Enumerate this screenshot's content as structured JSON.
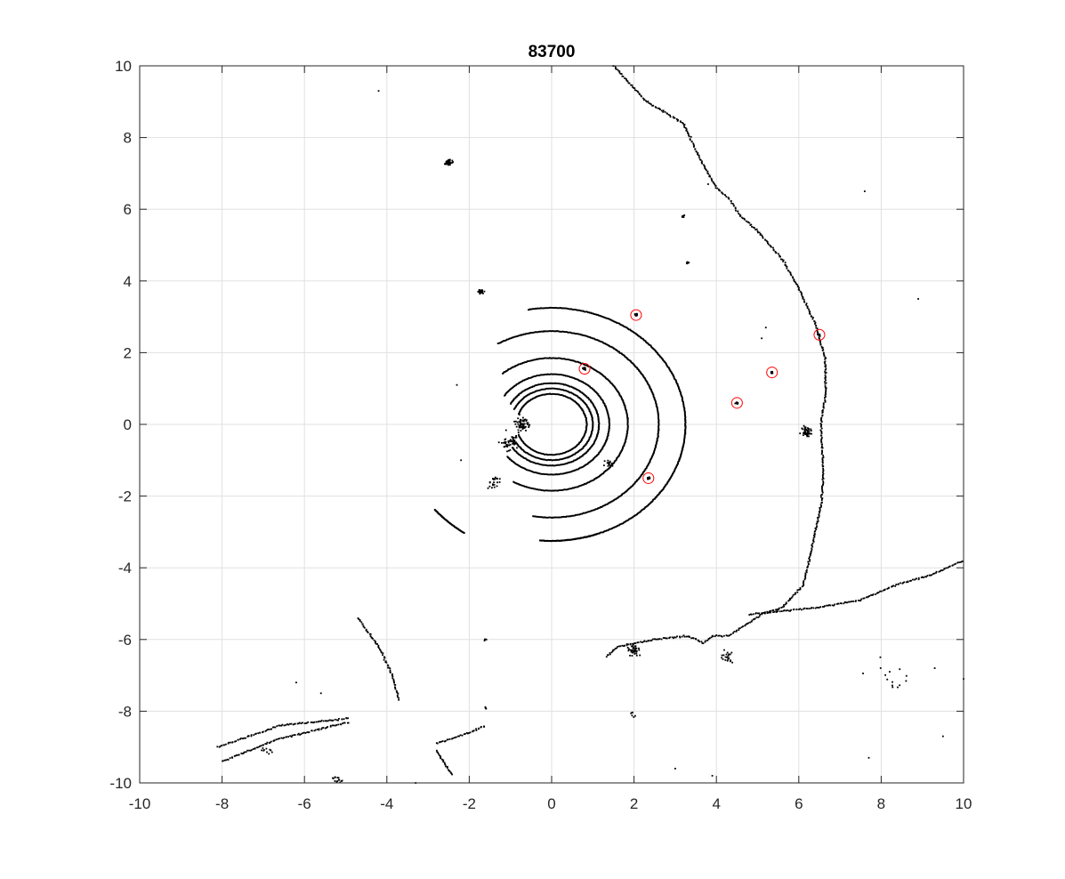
{
  "chart_data": {
    "type": "scatter",
    "title": "83700",
    "xlabel": "",
    "ylabel": "",
    "xlim": [
      -10,
      10
    ],
    "ylim": [
      -10,
      10
    ],
    "xticks": [
      -10,
      -8,
      -6,
      -4,
      -2,
      0,
      2,
      4,
      6,
      8,
      10
    ],
    "yticks": [
      -10,
      -8,
      -6,
      -4,
      -2,
      0,
      2,
      4,
      6,
      8,
      10
    ],
    "xtick_labels": [
      "-10",
      "-8",
      "-6",
      "-4",
      "-2",
      "0",
      "2",
      "4",
      "6",
      "8",
      "10"
    ],
    "ytick_labels": [
      "-10",
      "-8",
      "-6",
      "-4",
      "-2",
      "0",
      "2",
      "4",
      "6",
      "8",
      "10"
    ],
    "grid": true,
    "colors": {
      "points": "#000000",
      "markers": "#ff0000",
      "grid": "#e0e0e0",
      "axis": "#262626"
    },
    "marked_points": [
      {
        "x": 2.05,
        "y": 3.05
      },
      {
        "x": 0.8,
        "y": 1.55
      },
      {
        "x": 6.5,
        "y": 2.5
      },
      {
        "x": 5.35,
        "y": 1.45
      },
      {
        "x": 4.5,
        "y": 0.6
      },
      {
        "x": 2.35,
        "y": -1.5
      }
    ],
    "arcs": [
      {
        "r": 0.85,
        "from": -160,
        "to": 160
      },
      {
        "r": 1.0,
        "from": -150,
        "to": 155
      },
      {
        "r": 1.15,
        "from": -145,
        "to": 150
      },
      {
        "r": 1.4,
        "from": -140,
        "to": 145
      },
      {
        "r": 1.85,
        "from": -120,
        "to": 130
      },
      {
        "r": 2.6,
        "from": -100,
        "to": 120
      },
      {
        "r": 3.25,
        "from": -95,
        "to": 100
      },
      {
        "r": 3.25,
        "from": -95,
        "to": -70
      },
      {
        "r": 3.7,
        "from": -140,
        "to": -125
      }
    ],
    "polylines": [
      {
        "pts": [
          [
            1.5,
            10
          ],
          [
            2.3,
            9
          ],
          [
            3.2,
            8.4
          ],
          [
            3.6,
            7.4
          ],
          [
            4.0,
            6.6
          ],
          [
            4.3,
            6.3
          ],
          [
            4.6,
            5.8
          ],
          [
            5.0,
            5.4
          ],
          [
            5.6,
            4.6
          ],
          [
            6.0,
            3.8
          ],
          [
            6.4,
            2.8
          ],
          [
            6.65,
            1.8
          ],
          [
            6.65,
            0.8
          ],
          [
            6.55,
            0.2
          ],
          [
            6.55,
            -0.5
          ],
          [
            6.6,
            -1.3
          ],
          [
            6.55,
            -2.2
          ],
          [
            6.4,
            -3.0
          ],
          [
            6.25,
            -3.8
          ],
          [
            6.1,
            -4.5
          ],
          [
            5.6,
            -5.1
          ],
          [
            5.1,
            -5.3
          ],
          [
            4.7,
            -5.6
          ],
          [
            4.3,
            -5.9
          ],
          [
            3.9,
            -5.9
          ],
          [
            3.7,
            -6.1
          ],
          [
            3.3,
            -5.9
          ],
          [
            2.5,
            -6.0
          ],
          [
            1.6,
            -6.2
          ],
          [
            1.3,
            -6.5
          ]
        ]
      },
      {
        "pts": [
          [
            4.8,
            -5.3
          ],
          [
            6.5,
            -5.1
          ],
          [
            7.5,
            -4.9
          ],
          [
            8.3,
            -4.5
          ],
          [
            9.2,
            -4.2
          ],
          [
            10,
            -3.8
          ]
        ]
      },
      {
        "pts": [
          [
            -4.7,
            -5.4
          ],
          [
            -4.2,
            -6.2
          ],
          [
            -3.9,
            -6.9
          ],
          [
            -3.7,
            -7.7
          ]
        ]
      },
      {
        "pts": [
          [
            -8.1,
            -9.0
          ],
          [
            -6.6,
            -8.4
          ],
          [
            -4.9,
            -8.2
          ]
        ]
      },
      {
        "pts": [
          [
            -8.0,
            -9.4
          ],
          [
            -6.7,
            -8.8
          ],
          [
            -4.9,
            -8.3
          ]
        ]
      },
      {
        "pts": [
          [
            -2.8,
            -9.1
          ],
          [
            -2.4,
            -9.8
          ]
        ]
      },
      {
        "pts": [
          [
            -2.8,
            -8.9
          ],
          [
            -2.0,
            -8.6
          ],
          [
            -1.6,
            -8.4
          ]
        ]
      }
    ],
    "clusters": [
      {
        "x": -2.5,
        "y": 7.3,
        "n": 40,
        "s": 0.12
      },
      {
        "x": -1.7,
        "y": 3.7,
        "n": 30,
        "s": 0.1
      },
      {
        "x": 2.05,
        "y": 3.05,
        "n": 14,
        "s": 0.05
      },
      {
        "x": 0.8,
        "y": 1.55,
        "n": 16,
        "s": 0.06
      },
      {
        "x": 6.5,
        "y": 2.5,
        "n": 6,
        "s": 0.05
      },
      {
        "x": 5.35,
        "y": 1.45,
        "n": 8,
        "s": 0.06
      },
      {
        "x": 4.5,
        "y": 0.6,
        "n": 12,
        "s": 0.05
      },
      {
        "x": 2.35,
        "y": -1.5,
        "n": 16,
        "s": 0.05
      },
      {
        "x": 3.3,
        "y": 4.5,
        "n": 10,
        "s": 0.05
      },
      {
        "x": 3.2,
        "y": 5.8,
        "n": 8,
        "s": 0.05
      },
      {
        "x": -0.7,
        "y": 0.0,
        "n": 60,
        "s": 0.28
      },
      {
        "x": -1.0,
        "y": -0.5,
        "n": 50,
        "s": 0.35
      },
      {
        "x": -1.4,
        "y": -1.6,
        "n": 22,
        "s": 0.25
      },
      {
        "x": 1.4,
        "y": -1.1,
        "n": 18,
        "s": 0.15
      },
      {
        "x": 6.2,
        "y": -0.2,
        "n": 50,
        "s": 0.2
      },
      {
        "x": 4.3,
        "y": -6.5,
        "n": 24,
        "s": 0.3
      },
      {
        "x": 2.0,
        "y": -6.3,
        "n": 40,
        "s": 0.2
      },
      {
        "x": -5.2,
        "y": -9.9,
        "n": 14,
        "s": 0.15
      },
      {
        "x": -6.9,
        "y": -9.1,
        "n": 10,
        "s": 0.2
      },
      {
        "x": 8.0,
        "y": -7.0,
        "n": 14,
        "s": 0.9
      },
      {
        "x": 2.0,
        "y": -8.1,
        "n": 6,
        "s": 0.15
      },
      {
        "x": -1.6,
        "y": -6.0,
        "n": 4,
        "s": 0.05
      },
      {
        "x": -1.6,
        "y": -7.9,
        "n": 4,
        "s": 0.05
      }
    ],
    "isolated": [
      [
        -4.2,
        9.3
      ],
      [
        7.6,
        6.5
      ],
      [
        8.9,
        3.5
      ],
      [
        5.1,
        2.4
      ],
      [
        5.2,
        2.7
      ],
      [
        -2.3,
        1.1
      ],
      [
        -2.2,
        -1.0
      ],
      [
        3.8,
        6.7
      ],
      [
        -6.2,
        -7.2
      ],
      [
        -5.6,
        -7.5
      ],
      [
        10,
        -7.1
      ],
      [
        9.5,
        -8.7
      ],
      [
        9.3,
        -6.8
      ],
      [
        7.7,
        -9.3
      ],
      [
        3.0,
        -9.6
      ],
      [
        3.9,
        -9.8
      ],
      [
        -3.3,
        -10
      ]
    ]
  }
}
